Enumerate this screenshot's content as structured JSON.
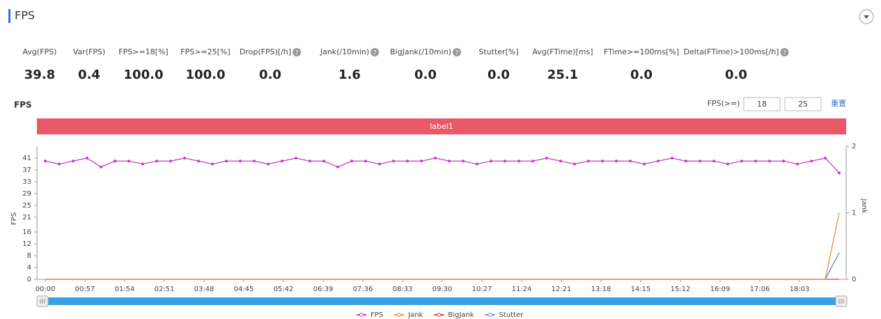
{
  "header": {
    "title": "FPS"
  },
  "stats": [
    {
      "label": "Avg(FPS)",
      "value": "39.8",
      "help": false
    },
    {
      "label": "Var(FPS)",
      "value": "0.4",
      "help": false
    },
    {
      "label": "FPS>=18[%]",
      "value": "100.0",
      "help": false
    },
    {
      "label": "FPS>=25[%]",
      "value": "100.0",
      "help": false
    },
    {
      "label": "Drop(FPS)[/h]",
      "value": "0.0",
      "help": true
    },
    {
      "label": "Jank(/10min)",
      "value": "1.6",
      "help": true
    },
    {
      "label": "BigJank(/10min)",
      "value": "0.0",
      "help": true
    },
    {
      "label": "Stutter[%]",
      "value": "0.0",
      "help": false
    },
    {
      "label": "Avg(FTime)[ms]",
      "value": "25.1",
      "help": false
    },
    {
      "label": "FTime>=100ms[%]",
      "value": "0.0",
      "help": false
    },
    {
      "label": "Delta(FTime)>100ms[/h]",
      "value": "0.0",
      "help": true
    }
  ],
  "controls": {
    "label": "FPS(>=)",
    "low": "18",
    "high": "25",
    "reset": "重置"
  },
  "chart_data": {
    "type": "line",
    "title": "FPS",
    "band_label": "label1",
    "y_label": "FPS",
    "y2_label": "Jank",
    "xlim": [
      0,
      1150
    ],
    "xticks": [
      {
        "value": 0,
        "label": "00:00"
      },
      {
        "value": 57,
        "label": "00:57"
      },
      {
        "value": 114,
        "label": "01:54"
      },
      {
        "value": 171,
        "label": "02:51"
      },
      {
        "value": 228,
        "label": "03:48"
      },
      {
        "value": 285,
        "label": "04:45"
      },
      {
        "value": 342,
        "label": "05:42"
      },
      {
        "value": 399,
        "label": "06:39"
      },
      {
        "value": 456,
        "label": "07:36"
      },
      {
        "value": 513,
        "label": "08:33"
      },
      {
        "value": 570,
        "label": "09:30"
      },
      {
        "value": 627,
        "label": "10:27"
      },
      {
        "value": 684,
        "label": "11:24"
      },
      {
        "value": 741,
        "label": "12:21"
      },
      {
        "value": 798,
        "label": "13:18"
      },
      {
        "value": 855,
        "label": "14:15"
      },
      {
        "value": 912,
        "label": "15:12"
      },
      {
        "value": 969,
        "label": "16:09"
      },
      {
        "value": 1026,
        "label": "17:06"
      },
      {
        "value": 1083,
        "label": "18:03"
      }
    ],
    "ylim": [
      0,
      45
    ],
    "yticks": [
      0,
      4,
      8,
      12,
      16,
      21,
      25,
      29,
      33,
      37,
      41
    ],
    "y2lim": [
      0,
      2
    ],
    "y2ticks": [
      0,
      1,
      2
    ],
    "x": [
      0,
      20,
      40,
      60,
      80,
      100,
      120,
      140,
      160,
      180,
      200,
      220,
      240,
      260,
      280,
      300,
      320,
      340,
      360,
      380,
      400,
      420,
      440,
      460,
      480,
      500,
      520,
      540,
      560,
      580,
      600,
      620,
      640,
      660,
      680,
      700,
      720,
      740,
      760,
      780,
      800,
      820,
      840,
      860,
      880,
      900,
      920,
      940,
      960,
      980,
      1000,
      1020,
      1040,
      1060,
      1080,
      1100,
      1120,
      1140
    ],
    "series": [
      {
        "name": "FPS",
        "color": "#c23fc8",
        "markers": true,
        "values": [
          40,
          39,
          40,
          41,
          38,
          40,
          40,
          39,
          40,
          40,
          41,
          40,
          39,
          40,
          40,
          40,
          39,
          40,
          41,
          40,
          40,
          38,
          40,
          40,
          39,
          40,
          40,
          40,
          41,
          40,
          40,
          39,
          40,
          40,
          40,
          40,
          41,
          40,
          39,
          40,
          40,
          40,
          40,
          39,
          40,
          41,
          40,
          40,
          40,
          39,
          40,
          40,
          40,
          40,
          39,
          40,
          41,
          36
        ]
      },
      {
        "name": "Jank",
        "color": "#f08a3c",
        "axis": "y2",
        "markers": false,
        "values": [
          0,
          0,
          0,
          0,
          0,
          0,
          0,
          0,
          0,
          0,
          0,
          0,
          0,
          0,
          0,
          0,
          0,
          0,
          0,
          0,
          0,
          0,
          0,
          0,
          0,
          0,
          0,
          0,
          0,
          0,
          0,
          0,
          0,
          0,
          0,
          0,
          0,
          0,
          0,
          0,
          0,
          0,
          0,
          0,
          0,
          0,
          0,
          0,
          0,
          0,
          0,
          0,
          0,
          0,
          0,
          0,
          0,
          1
        ]
      },
      {
        "name": "BigJank",
        "color": "#d9363e",
        "axis": "y2",
        "markers": false,
        "values": [
          0,
          0,
          0,
          0,
          0,
          0,
          0,
          0,
          0,
          0,
          0,
          0,
          0,
          0,
          0,
          0,
          0,
          0,
          0,
          0,
          0,
          0,
          0,
          0,
          0,
          0,
          0,
          0,
          0,
          0,
          0,
          0,
          0,
          0,
          0,
          0,
          0,
          0,
          0,
          0,
          0,
          0,
          0,
          0,
          0,
          0,
          0,
          0,
          0,
          0,
          0,
          0,
          0,
          0,
          0,
          0,
          0,
          0
        ]
      },
      {
        "name": "Stutter",
        "color": "#5b8fd6",
        "axis": "y2",
        "markers": false,
        "values": [
          0,
          0,
          0,
          0,
          0,
          0,
          0,
          0,
          0,
          0,
          0,
          0,
          0,
          0,
          0,
          0,
          0,
          0,
          0,
          0,
          0,
          0,
          0,
          0,
          0,
          0,
          0,
          0,
          0,
          0,
          0,
          0,
          0,
          0,
          0,
          0,
          0,
          0,
          0,
          0,
          0,
          0,
          0,
          0,
          0,
          0,
          0,
          0,
          0,
          0,
          0,
          0,
          0,
          0,
          0,
          0,
          0,
          0.4
        ]
      }
    ]
  }
}
